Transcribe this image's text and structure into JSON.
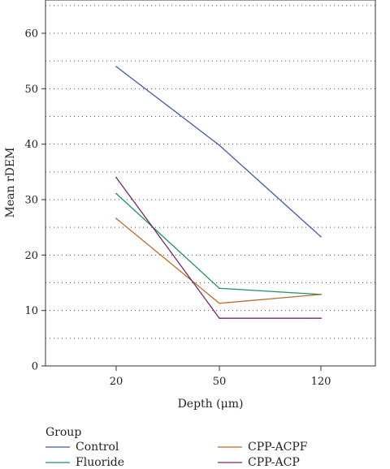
{
  "chart_data": {
    "type": "line",
    "title": "",
    "xlabel": "Depth (μm)",
    "ylabel": "Mean rDEM",
    "categories": [
      "20",
      "50",
      "120"
    ],
    "ylim": [
      0,
      66
    ],
    "yticks": [
      0,
      10,
      20,
      30,
      40,
      50,
      60
    ],
    "grid": "horizontal dotted, every 5 units",
    "legend": {
      "title": "Group",
      "position": "bottom"
    },
    "series": [
      {
        "name": "Control",
        "color": "#3f5ba8",
        "values": [
          54.0,
          39.8,
          23.3
        ]
      },
      {
        "name": "Fluoride",
        "color": "#1a9461",
        "values": [
          31.1,
          14.0,
          12.9
        ]
      },
      {
        "name": "CPP-ACPF",
        "color": "#b86e24",
        "values": [
          26.6,
          11.3,
          12.9
        ]
      },
      {
        "name": "CPP-ACP",
        "color": "#76256f",
        "values": [
          34.0,
          8.6,
          8.6
        ]
      }
    ]
  }
}
